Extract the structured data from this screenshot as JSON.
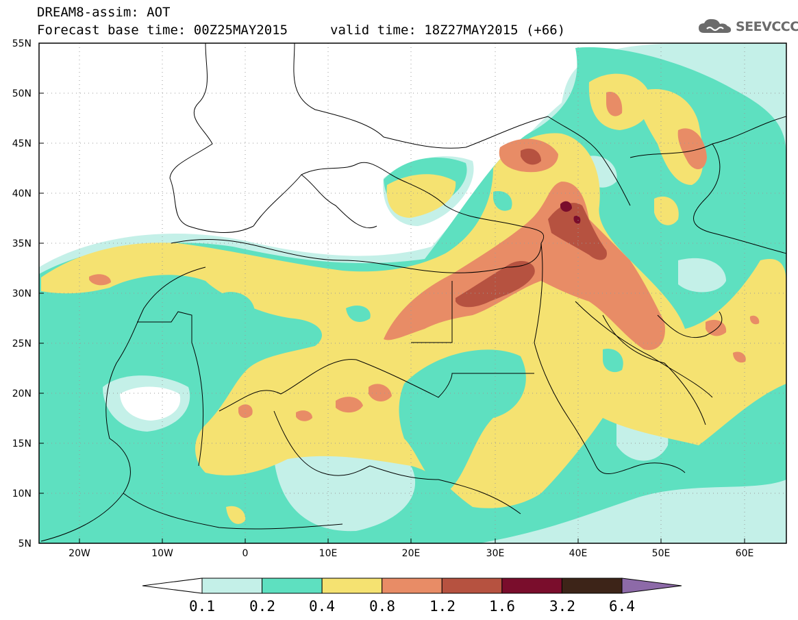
{
  "header": {
    "title": "DREAM8-assim: AOT",
    "base_time": "Forecast base time: 00Z25MAY2015",
    "valid_time": "valid time: 18Z27MAY2015 (+66)"
  },
  "logo": {
    "text": "SEEVCCC",
    "icon": "cloud-icon"
  },
  "map": {
    "lon_range": [
      -25,
      65
    ],
    "lat_range": [
      5,
      55
    ],
    "lat_labels": [
      "55N",
      "50N",
      "45N",
      "40N",
      "35N",
      "30N",
      "25N",
      "20N",
      "15N",
      "10N",
      "5N"
    ],
    "lon_labels": [
      "20W",
      "10W",
      "0",
      "10E",
      "20E",
      "30E",
      "40E",
      "50E",
      "60E"
    ]
  },
  "colorbar": {
    "levels": [
      "0.1",
      "0.2",
      "0.4",
      "0.8",
      "1.2",
      "1.6",
      "3.2",
      "6.4"
    ],
    "colors": [
      "#ffffff",
      "#c4f0e8",
      "#5ee0c0",
      "#f5e271",
      "#e88c66",
      "#b65240",
      "#7a0d2c",
      "#3d2418",
      "#8d6aa8"
    ]
  }
}
